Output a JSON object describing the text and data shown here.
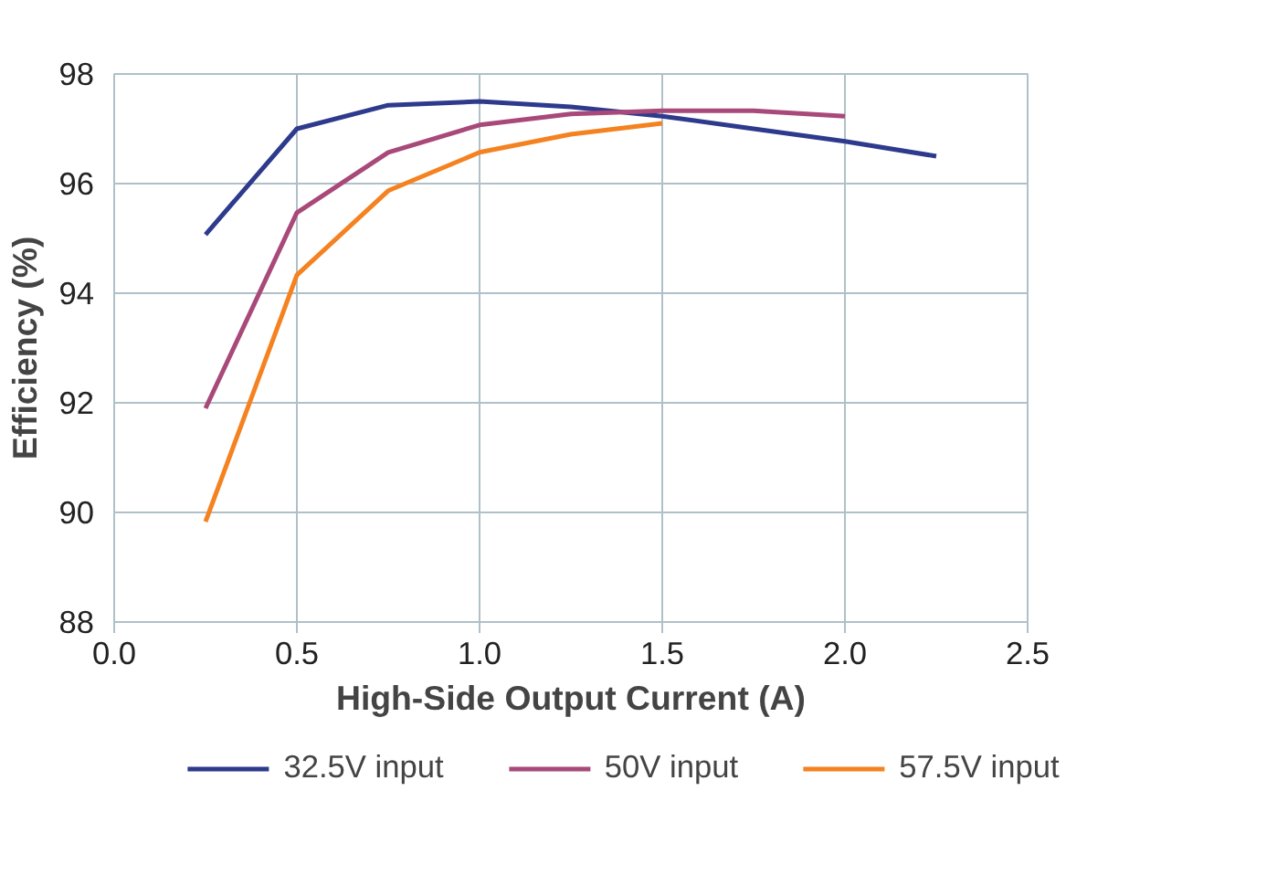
{
  "chart_data": {
    "type": "line",
    "xlabel": "High-Side Output Current (A)",
    "ylabel": "Efficiency (%)",
    "xlim": [
      0,
      2.5
    ],
    "xticks": [
      {
        "value": 0,
        "label": "0.0"
      },
      {
        "value": 0.5,
        "label": "0.5"
      },
      {
        "value": 1,
        "label": "1.0"
      },
      {
        "value": 1.5,
        "label": "1.5"
      },
      {
        "value": 2,
        "label": "2.0"
      },
      {
        "value": 2.5,
        "label": "2.5"
      }
    ],
    "ylim": [
      88,
      98
    ],
    "yticks": [
      88,
      90,
      92,
      94,
      96,
      98
    ],
    "grid": true,
    "legend": "bottom",
    "marker": "none",
    "line_style": "solid",
    "series": [
      {
        "name": "32.5V input",
        "color": "#2e3a8c",
        "x": [
          0.25,
          0.5,
          0.75,
          1.0,
          1.25,
          1.5,
          1.75,
          2.0,
          2.25
        ],
        "values": [
          95.07,
          97.0,
          97.43,
          97.5,
          97.4,
          97.23,
          97.0,
          96.77,
          96.5
        ]
      },
      {
        "name": "50V input",
        "color": "#a8497a",
        "x": [
          0.25,
          0.5,
          0.75,
          1.0,
          1.25,
          1.5,
          1.75,
          2.0
        ],
        "values": [
          91.9,
          95.47,
          96.57,
          97.07,
          97.27,
          97.33,
          97.33,
          97.23
        ]
      },
      {
        "name": "57.5V input",
        "color": "#f58220",
        "x": [
          0.25,
          0.5,
          0.75,
          1.0,
          1.25,
          1.5
        ],
        "values": [
          89.83,
          94.33,
          95.87,
          96.57,
          96.9,
          97.1
        ]
      }
    ]
  }
}
